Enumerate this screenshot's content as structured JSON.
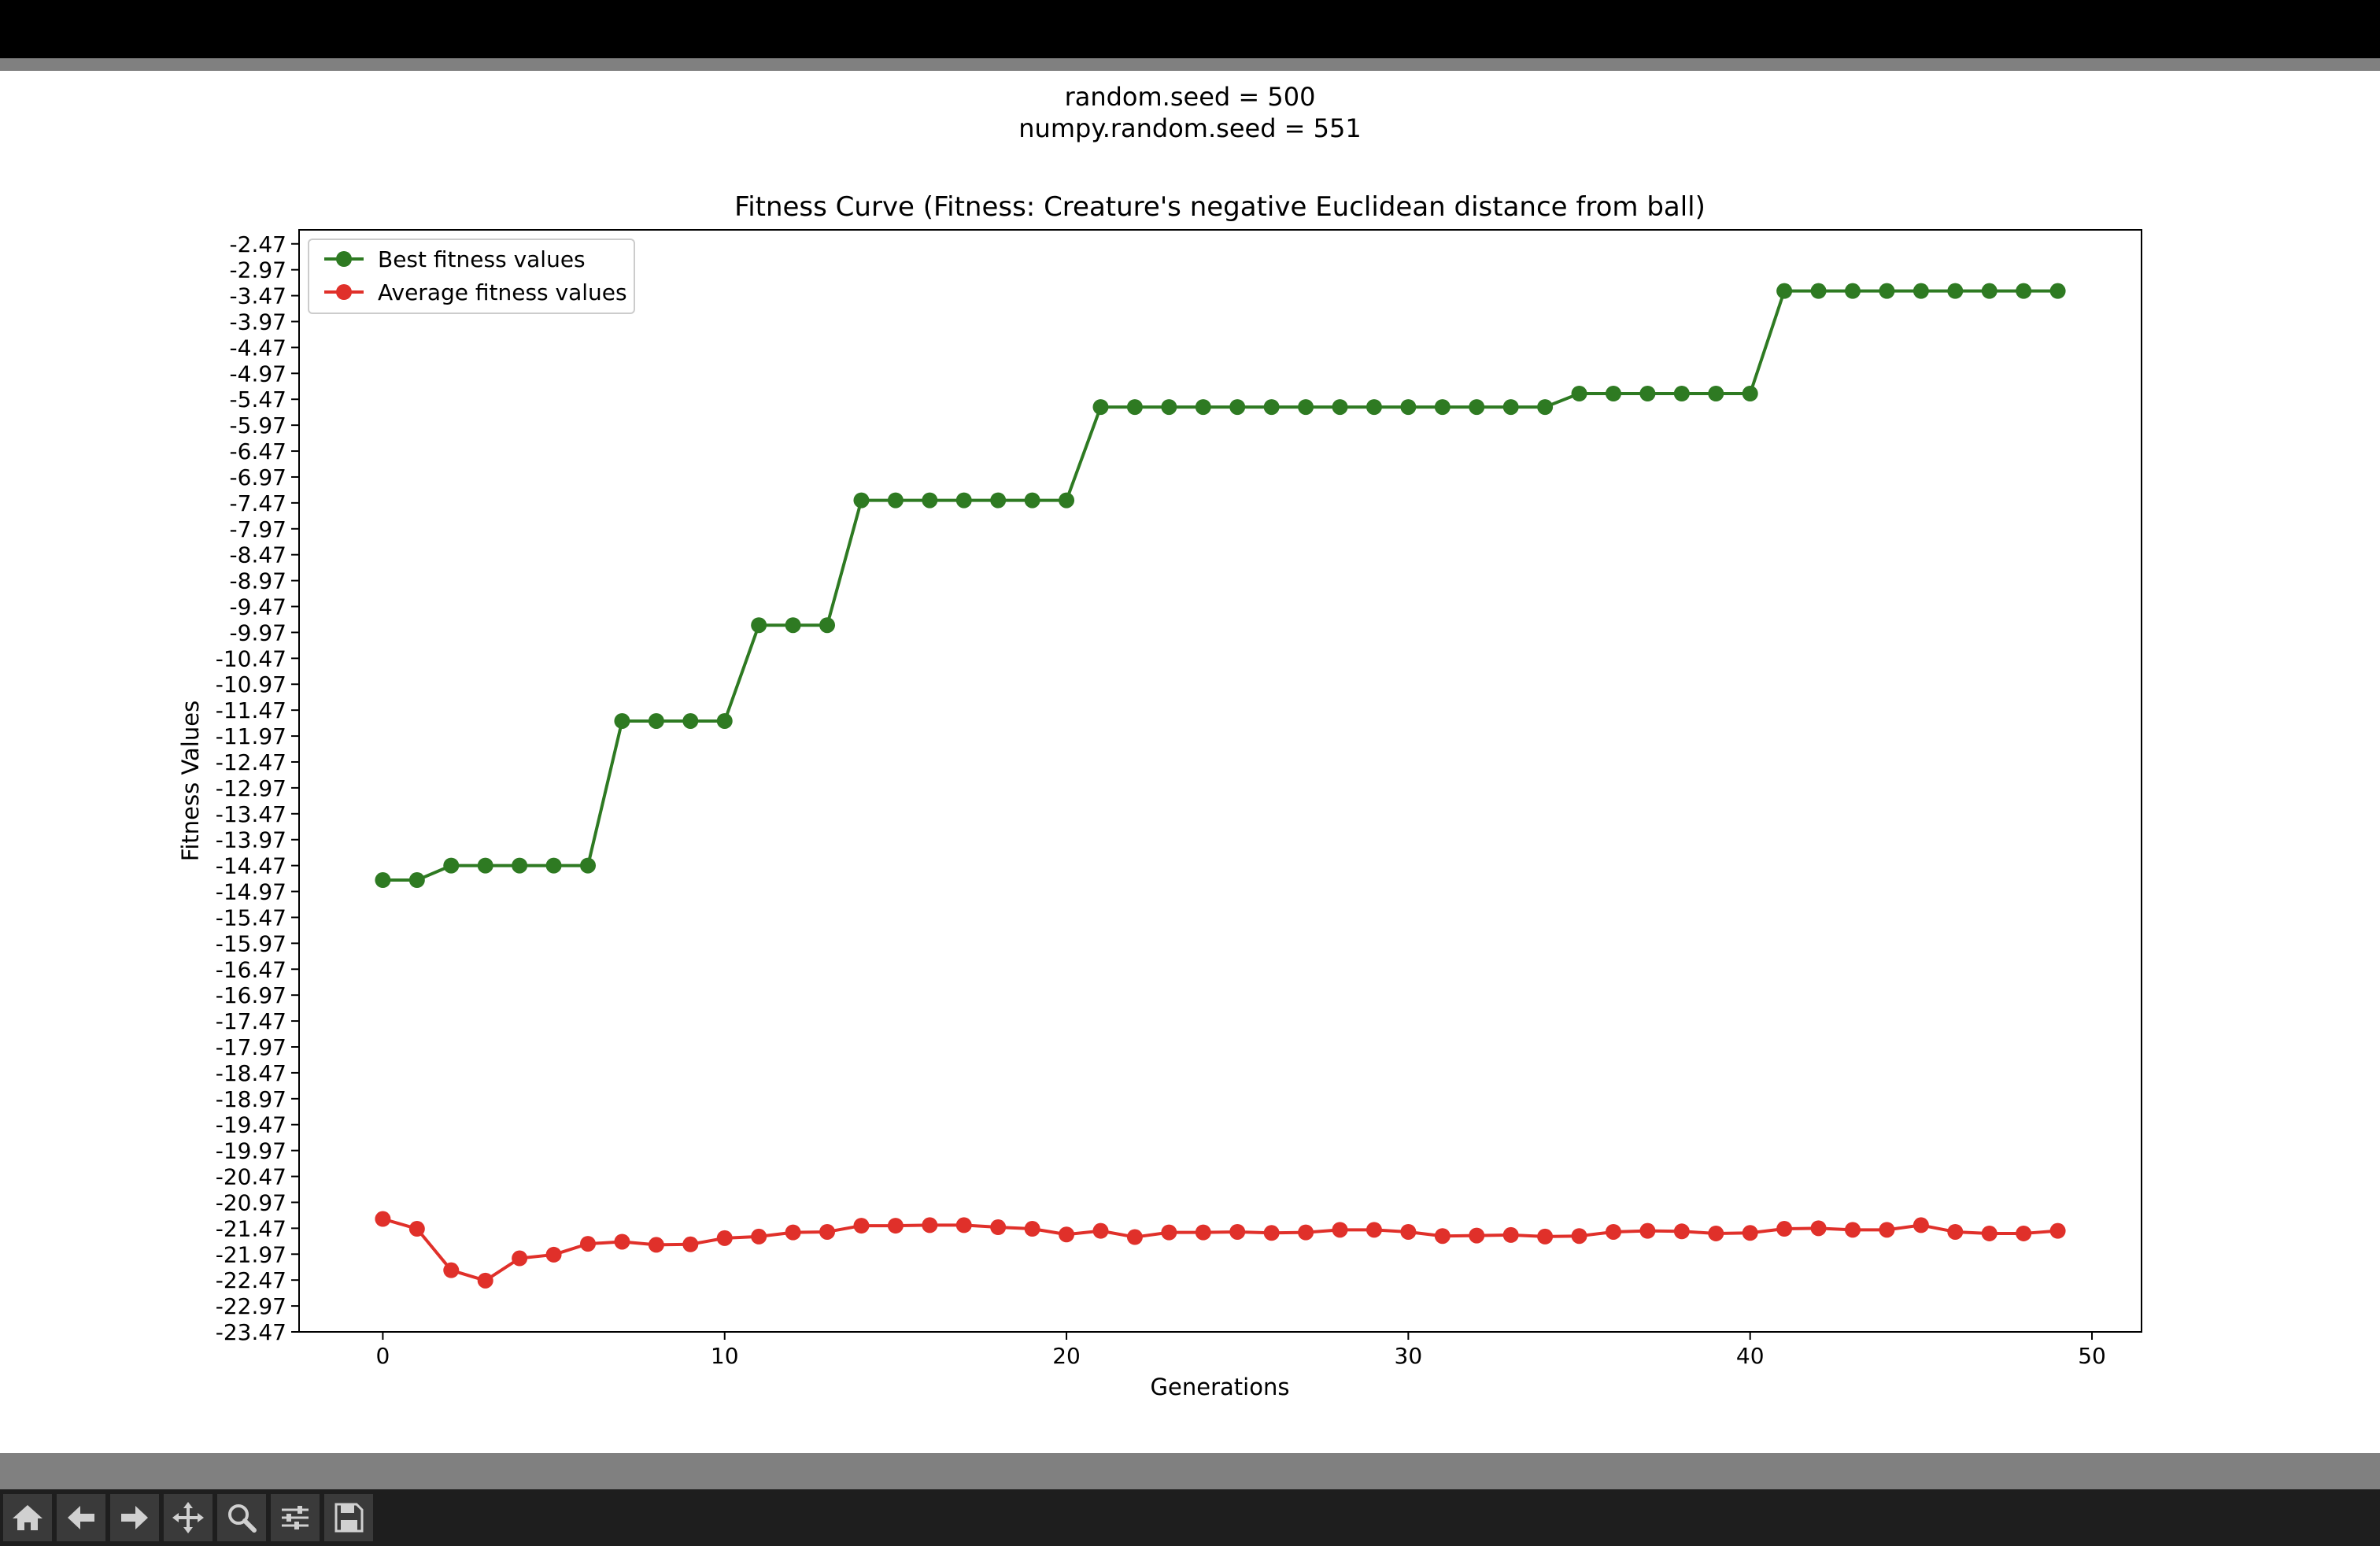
{
  "figure": {
    "suptitle_line1": "random.seed = 500",
    "suptitle_line2": "numpy.random.seed = 551"
  },
  "toolbar": {
    "buttons": [
      "home-icon",
      "back-arrow-icon",
      "forward-arrow-icon",
      "pan-icon",
      "zoom-icon",
      "configure-subplots-icon",
      "save-icon"
    ]
  },
  "chart_data": {
    "type": "line",
    "title": "Fitness Curve (Fitness: Creature's negative Euclidean distance from ball)",
    "xlabel": "Generations",
    "ylabel": "Fitness Values",
    "xlim": [
      -2.45,
      51.45
    ],
    "ylim": [
      -23.47,
      -2.2
    ],
    "xticks": [
      0,
      10,
      20,
      30,
      40,
      50
    ],
    "yticks": [
      -2.47,
      -2.97,
      -3.47,
      -3.97,
      -4.47,
      -4.97,
      -5.47,
      -5.97,
      -6.47,
      -6.97,
      -7.47,
      -7.97,
      -8.47,
      -8.97,
      -9.47,
      -9.97,
      -10.47,
      -10.97,
      -11.47,
      -11.97,
      -12.47,
      -12.97,
      -13.47,
      -13.97,
      -14.47,
      -14.97,
      -15.47,
      -15.97,
      -16.47,
      -16.97,
      -17.47,
      -17.97,
      -18.47,
      -18.97,
      -19.47,
      -19.97,
      -20.47,
      -20.97,
      -21.47,
      -21.97,
      -22.47,
      -22.97,
      -23.47
    ],
    "grid": false,
    "legend_position": "upper-left",
    "x": [
      0,
      1,
      2,
      3,
      4,
      5,
      6,
      7,
      8,
      9,
      10,
      11,
      12,
      13,
      14,
      15,
      16,
      17,
      18,
      19,
      20,
      21,
      22,
      23,
      24,
      25,
      26,
      27,
      28,
      29,
      30,
      31,
      32,
      33,
      34,
      35,
      36,
      37,
      38,
      39,
      40,
      41,
      42,
      43,
      44,
      45,
      46,
      47,
      48,
      49
    ],
    "series": [
      {
        "name": "Best fitness values",
        "color": "#2e7a22",
        "values": [
          -14.75,
          -14.75,
          -14.47,
          -14.47,
          -14.47,
          -14.47,
          -14.47,
          -11.68,
          -11.68,
          -11.68,
          -11.68,
          -9.83,
          -9.83,
          -9.83,
          -7.42,
          -7.42,
          -7.42,
          -7.42,
          -7.42,
          -7.42,
          -7.42,
          -5.62,
          -5.62,
          -5.62,
          -5.62,
          -5.62,
          -5.62,
          -5.62,
          -5.62,
          -5.62,
          -5.62,
          -5.62,
          -5.62,
          -5.62,
          -5.62,
          -5.36,
          -5.36,
          -5.36,
          -5.36,
          -5.36,
          -5.36,
          -3.38,
          -3.38,
          -3.38,
          -3.38,
          -3.38,
          -3.38,
          -3.38,
          -3.38,
          -3.38
        ]
      },
      {
        "name": "Average fitness values",
        "color": "#e0302a",
        "values": [
          -21.29,
          -21.48,
          -22.28,
          -22.48,
          -22.05,
          -21.98,
          -21.77,
          -21.73,
          -21.79,
          -21.78,
          -21.66,
          -21.63,
          -21.55,
          -21.54,
          -21.42,
          -21.42,
          -21.41,
          -21.41,
          -21.45,
          -21.48,
          -21.59,
          -21.52,
          -21.64,
          -21.55,
          -21.55,
          -21.54,
          -21.56,
          -21.55,
          -21.5,
          -21.5,
          -21.54,
          -21.62,
          -21.61,
          -21.6,
          -21.63,
          -21.62,
          -21.54,
          -21.52,
          -21.53,
          -21.57,
          -21.56,
          -21.48,
          -21.47,
          -21.5,
          -21.5,
          -21.41,
          -21.54,
          -21.57,
          -21.57,
          -21.52
        ]
      }
    ]
  }
}
